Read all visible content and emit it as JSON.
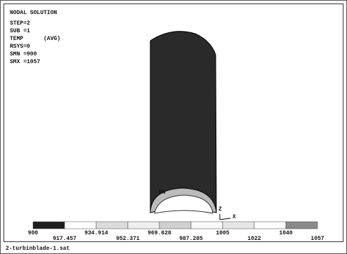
{
  "header": {
    "title": "NODAL SOLUTION",
    "lines": [
      "STEP=2",
      "SUB =1",
      "TEMP",
      "RSYS=0",
      "SMN =900",
      "SMX =1057"
    ],
    "avg": "(AVG)"
  },
  "labels": {
    "min": "MN",
    "z": "Z",
    "x": "X"
  },
  "legend": {
    "top": [
      "900",
      "934.914",
      "969.828",
      "1005",
      "1040"
    ],
    "bottom": [
      "917.457",
      "952.371",
      "987.285",
      "1022",
      "1057"
    ]
  },
  "footer": "2-turbinblade-1.sat"
}
